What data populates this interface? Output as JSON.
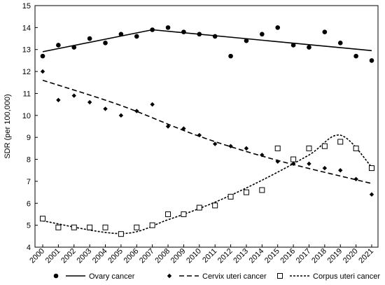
{
  "chart_data": {
    "type": "scatter",
    "title": "",
    "xlabel": "",
    "ylabel": "SDR (per 100,000)",
    "ylim": [
      4,
      15
    ],
    "yticks": [
      4,
      5,
      6,
      7,
      8,
      9,
      10,
      11,
      12,
      13,
      14,
      15
    ],
    "grid": false,
    "legend_position": "bottom",
    "categories": [
      "2000",
      "2001",
      "2002",
      "2003",
      "2004",
      "2005",
      "2006",
      "2007",
      "2008",
      "2009",
      "2010",
      "2011",
      "2012",
      "2013",
      "2014",
      "2015",
      "2016",
      "2017",
      "2018",
      "2019",
      "2020",
      "2021"
    ],
    "series": [
      {
        "name": "Ovary cancer",
        "marker": "circle",
        "values": [
          12.7,
          13.2,
          13.1,
          13.5,
          13.3,
          13.7,
          13.6,
          13.9,
          14.0,
          13.8,
          13.7,
          13.6,
          12.7,
          13.4,
          13.7,
          14.0,
          13.2,
          13.1,
          13.8,
          13.3,
          12.7,
          12.5
        ],
        "trend_style": "solid",
        "trend": [
          [
            2000,
            12.9
          ],
          [
            2007,
            13.9
          ],
          [
            2021,
            12.95
          ]
        ]
      },
      {
        "name": "Cervix uteri cancer",
        "marker": "diamond",
        "values": [
          12.0,
          10.7,
          10.9,
          10.6,
          10.3,
          10.0,
          10.2,
          10.5,
          9.5,
          9.4,
          9.1,
          8.7,
          8.6,
          8.5,
          8.2,
          7.9,
          7.8,
          7.8,
          7.6,
          7.5,
          7.1,
          6.4
        ],
        "trend_style": "dashed",
        "trend": [
          [
            2000,
            11.6
          ],
          [
            2005,
            10.45
          ],
          [
            2010,
            9.05
          ],
          [
            2015,
            7.95
          ],
          [
            2021,
            6.9
          ]
        ]
      },
      {
        "name": "Corpus uteri cancer",
        "marker": "square",
        "values": [
          5.3,
          4.9,
          4.9,
          4.9,
          4.9,
          4.6,
          4.9,
          5.0,
          5.5,
          5.5,
          5.8,
          5.9,
          6.3,
          6.5,
          6.6,
          8.5,
          8.0,
          8.5,
          8.6,
          8.8,
          8.5,
          7.6
        ],
        "trend_style": "dotted",
        "trend": [
          [
            2000,
            5.2
          ],
          [
            2005,
            4.62
          ],
          [
            2008,
            5.25
          ],
          [
            2011,
            6.05
          ],
          [
            2014,
            7.05
          ],
          [
            2017,
            8.2
          ],
          [
            2019,
            9.1
          ],
          [
            2021,
            7.65
          ]
        ]
      }
    ]
  }
}
